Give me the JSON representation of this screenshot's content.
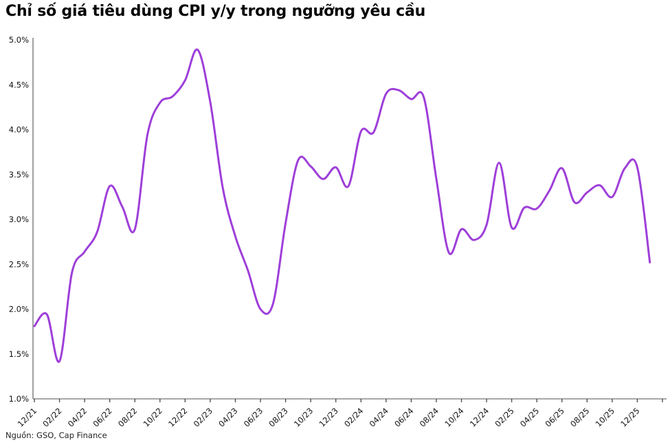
{
  "title": "Chỉ số giá tiêu dùng CPI y/y trong ngưỡng yêu cầu",
  "source": "Nguồn: GSO, Cap Finance",
  "chart_data": {
    "type": "line",
    "title": "Chỉ số giá tiêu dùng CPI y/y trong ngưỡng yêu cầu",
    "series_name": "CPI y/y (%)",
    "x": [
      "12/21",
      "01/22",
      "02/22",
      "03/22",
      "04/22",
      "05/22",
      "06/22",
      "07/22",
      "08/22",
      "09/22",
      "10/22",
      "11/22",
      "12/22",
      "01/23",
      "02/23",
      "03/23",
      "04/23",
      "05/23",
      "06/23",
      "07/23",
      "08/23",
      "09/23",
      "10/23",
      "11/23",
      "12/23",
      "01/24",
      "02/24",
      "03/24",
      "04/24",
      "05/24",
      "06/24",
      "07/24",
      "08/24",
      "09/24",
      "10/24",
      "11/24",
      "12/24",
      "01/25",
      "02/25",
      "03/25",
      "04/25",
      "05/25",
      "06/25",
      "07/25",
      "08/25",
      "09/25",
      "10/25",
      "11/25",
      "12/25",
      "01/26"
    ],
    "values": [
      1.81,
      1.94,
      1.42,
      2.41,
      2.64,
      2.86,
      3.37,
      3.14,
      2.89,
      3.94,
      4.3,
      4.37,
      4.55,
      4.89,
      4.31,
      3.35,
      2.81,
      2.43,
      2.0,
      2.06,
      2.96,
      3.66,
      3.59,
      3.45,
      3.58,
      3.37,
      3.98,
      3.97,
      4.4,
      4.44,
      4.34,
      4.36,
      3.45,
      2.63,
      2.89,
      2.77,
      2.94,
      3.63,
      2.91,
      3.13,
      3.12,
      3.32,
      3.57,
      3.19,
      3.3,
      3.38,
      3.25,
      3.57,
      3.58,
      2.52
    ],
    "x_tick_every": 2,
    "x_tick_labeled_count": 25,
    "ylim": [
      1.0,
      5.0
    ],
    "yticks": [
      1.0,
      1.5,
      2.0,
      2.5,
      3.0,
      3.5,
      4.0,
      4.5,
      5.0
    ],
    "ytick_labels": [
      "1.0%",
      "1.5%",
      "2.0%",
      "2.5%",
      "3.0%",
      "3.5%",
      "4.0%",
      "4.5%",
      "5.0%"
    ],
    "xlabel": "",
    "ylabel": "",
    "grid": "off",
    "legend": "none",
    "line_color": "#9E3FD9",
    "line_width": 3,
    "axis_color": "#8a8a8a",
    "tick_color": "#444444",
    "label_color": "#111111"
  }
}
